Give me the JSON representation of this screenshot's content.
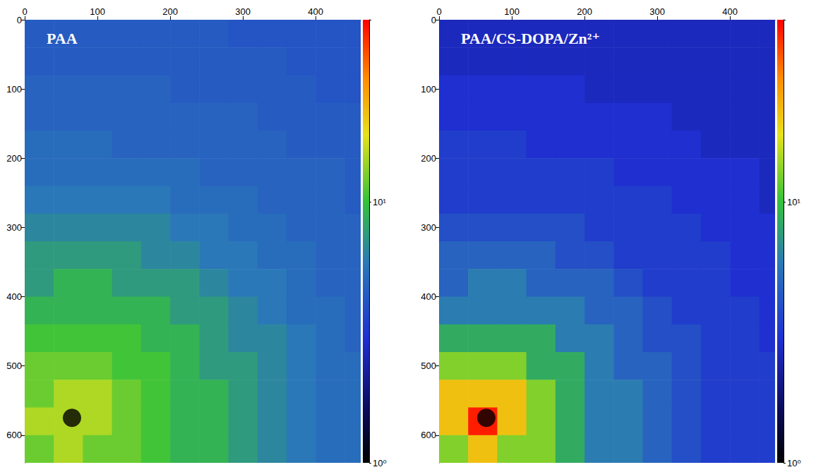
{
  "chart_data": [
    {
      "type": "heatmap",
      "title": "PAA",
      "xlim": [
        0,
        462
      ],
      "ylim": [
        0,
        640
      ],
      "xticks": [
        0,
        100,
        200,
        300,
        400
      ],
      "yticks": [
        0,
        100,
        200,
        300,
        400,
        500,
        600
      ],
      "cells": {
        "x_edges": [
          0,
          40,
          80,
          120,
          160,
          200,
          240,
          280,
          320,
          360,
          400,
          440,
          462
        ],
        "y_edges": [
          0,
          40,
          80,
          120,
          160,
          200,
          240,
          280,
          320,
          360,
          400,
          440,
          480,
          520,
          560,
          600,
          640
        ],
        "values": [
          [
            4.5,
            4.5,
            4.5,
            4.5,
            4.5,
            4.5,
            4.5,
            4.2,
            4.2,
            4.2,
            4.2,
            4.2
          ],
          [
            4.5,
            4.5,
            4.5,
            4.5,
            4.5,
            4.5,
            4.5,
            4.5,
            4.5,
            4.2,
            4.2,
            4.2
          ],
          [
            4.8,
            4.8,
            4.8,
            4.8,
            4.8,
            4.5,
            4.5,
            4.5,
            4.5,
            4.5,
            4.2,
            4.2
          ],
          [
            4.8,
            4.8,
            4.8,
            4.8,
            4.8,
            4.8,
            4.8,
            4.8,
            4.5,
            4.5,
            4.5,
            4.5
          ],
          [
            5.2,
            5.2,
            5.2,
            4.8,
            4.8,
            4.8,
            4.8,
            4.8,
            4.8,
            4.5,
            4.5,
            4.5
          ],
          [
            5.2,
            5.2,
            5.2,
            5.2,
            5.2,
            5.2,
            4.8,
            4.8,
            4.8,
            4.8,
            4.8,
            4.5
          ],
          [
            5.8,
            5.8,
            5.8,
            5.8,
            5.8,
            5.2,
            5.2,
            5.2,
            4.8,
            4.8,
            4.8,
            4.5
          ],
          [
            6.5,
            6.5,
            6.5,
            6.5,
            6.5,
            5.8,
            5.8,
            5.2,
            5.2,
            4.8,
            4.8,
            4.8
          ],
          [
            7.5,
            7.5,
            7.5,
            7.5,
            6.5,
            6.5,
            5.8,
            5.8,
            5.2,
            5.2,
            4.8,
            4.8
          ],
          [
            7.5,
            9,
            9,
            7.5,
            7.5,
            7.5,
            6.5,
            5.8,
            5.8,
            5.2,
            4.8,
            4.8
          ],
          [
            9,
            9,
            9,
            9,
            9,
            7.5,
            7.5,
            6.5,
            5.8,
            5.2,
            5.2,
            4.8
          ],
          [
            10.5,
            10.5,
            10.5,
            10.5,
            9,
            9,
            7.5,
            6.5,
            6.5,
            5.8,
            5.2,
            4.8
          ],
          [
            12,
            12,
            12,
            10.5,
            10.5,
            9,
            7.5,
            7.5,
            6.5,
            5.8,
            5.2,
            5.2
          ],
          [
            12,
            15,
            15,
            12,
            10.5,
            9,
            9,
            7.5,
            6.5,
            5.8,
            5.2,
            5.2
          ],
          [
            15,
            15,
            15,
            12,
            10.5,
            9,
            9,
            7.5,
            6.5,
            5.8,
            5.2,
            5.2
          ],
          [
            12,
            15,
            12,
            12,
            10.5,
            9,
            9,
            7.5,
            6.5,
            5.8,
            5.2,
            5.2
          ]
        ]
      },
      "beam_stop": {
        "x": 65,
        "y": 575
      },
      "colorbar": {
        "range": [
          1,
          50
        ],
        "ticks": [
          {
            "value": 1,
            "label": "10⁰"
          },
          {
            "value": 10,
            "label": "10¹"
          }
        ]
      }
    },
    {
      "type": "heatmap",
      "title": "PAA/CS-DOPA/Zn²⁺",
      "xlim": [
        0,
        462
      ],
      "ylim": [
        0,
        640
      ],
      "xticks": [
        0,
        100,
        200,
        300,
        400
      ],
      "yticks": [
        0,
        100,
        200,
        300,
        400,
        500,
        600
      ],
      "cells": {
        "x_edges": [
          0,
          40,
          80,
          120,
          160,
          200,
          240,
          280,
          320,
          360,
          400,
          440,
          462
        ],
        "y_edges": [
          0,
          40,
          80,
          120,
          160,
          200,
          240,
          280,
          320,
          360,
          400,
          440,
          480,
          520,
          560,
          600,
          640
        ],
        "values": [
          [
            2.7,
            2.7,
            2.7,
            2.7,
            2.7,
            2.7,
            2.7,
            2.7,
            2.7,
            2.7,
            2.7,
            2.7
          ],
          [
            2.7,
            2.7,
            2.7,
            2.7,
            2.7,
            2.7,
            2.7,
            2.7,
            2.7,
            2.7,
            2.7,
            2.7
          ],
          [
            3,
            3,
            3,
            3,
            3,
            2.7,
            2.7,
            2.7,
            2.7,
            2.7,
            2.7,
            2.7
          ],
          [
            3,
            3,
            3,
            3,
            3,
            3,
            3,
            3,
            2.7,
            2.7,
            2.7,
            2.7
          ],
          [
            3.4,
            3.4,
            3.4,
            3,
            3,
            3,
            3,
            3,
            3,
            2.7,
            2.7,
            2.7
          ],
          [
            3.4,
            3.4,
            3.4,
            3.4,
            3.4,
            3.4,
            3,
            3,
            3,
            3,
            3,
            2.7
          ],
          [
            3.4,
            3.4,
            3.4,
            3.4,
            3.4,
            3.4,
            3.4,
            3.4,
            3,
            3,
            3,
            2.7
          ],
          [
            4,
            4,
            4,
            4,
            4,
            3.4,
            3.4,
            3.4,
            3.4,
            3,
            3,
            3
          ],
          [
            4.8,
            4.8,
            4.8,
            4.8,
            4,
            4,
            3.4,
            3.4,
            3.4,
            3.4,
            3,
            3
          ],
          [
            4.8,
            6,
            6,
            4.8,
            4.8,
            4.8,
            4,
            3.4,
            3.4,
            3.4,
            3,
            3
          ],
          [
            6,
            6,
            6,
            6,
            6,
            4.8,
            4.8,
            4,
            3.4,
            3.4,
            3.4,
            3
          ],
          [
            8.5,
            8.5,
            8.5,
            8.5,
            6,
            6,
            4.8,
            4,
            4,
            3.4,
            3.4,
            3
          ],
          [
            13,
            13,
            13,
            8.5,
            8.5,
            6,
            4.8,
            4.8,
            4,
            3.4,
            3.4,
            3.4
          ],
          [
            22,
            22,
            22,
            13,
            8.5,
            6,
            6,
            4.8,
            4,
            3.4,
            3.4,
            3.4
          ],
          [
            22,
            45,
            22,
            13,
            8.5,
            6,
            6,
            4.8,
            4,
            3.4,
            3.4,
            3.4
          ],
          [
            13,
            22,
            13,
            13,
            8.5,
            6,
            6,
            4.8,
            4,
            3.4,
            3.4,
            3.4
          ]
        ]
      },
      "beam_stop": {
        "x": 65,
        "y": 575
      },
      "colorbar": {
        "range": [
          1,
          50
        ],
        "ticks": [
          {
            "value": 1,
            "label": "10⁰"
          },
          {
            "value": 10,
            "label": "10¹"
          }
        ]
      }
    }
  ]
}
